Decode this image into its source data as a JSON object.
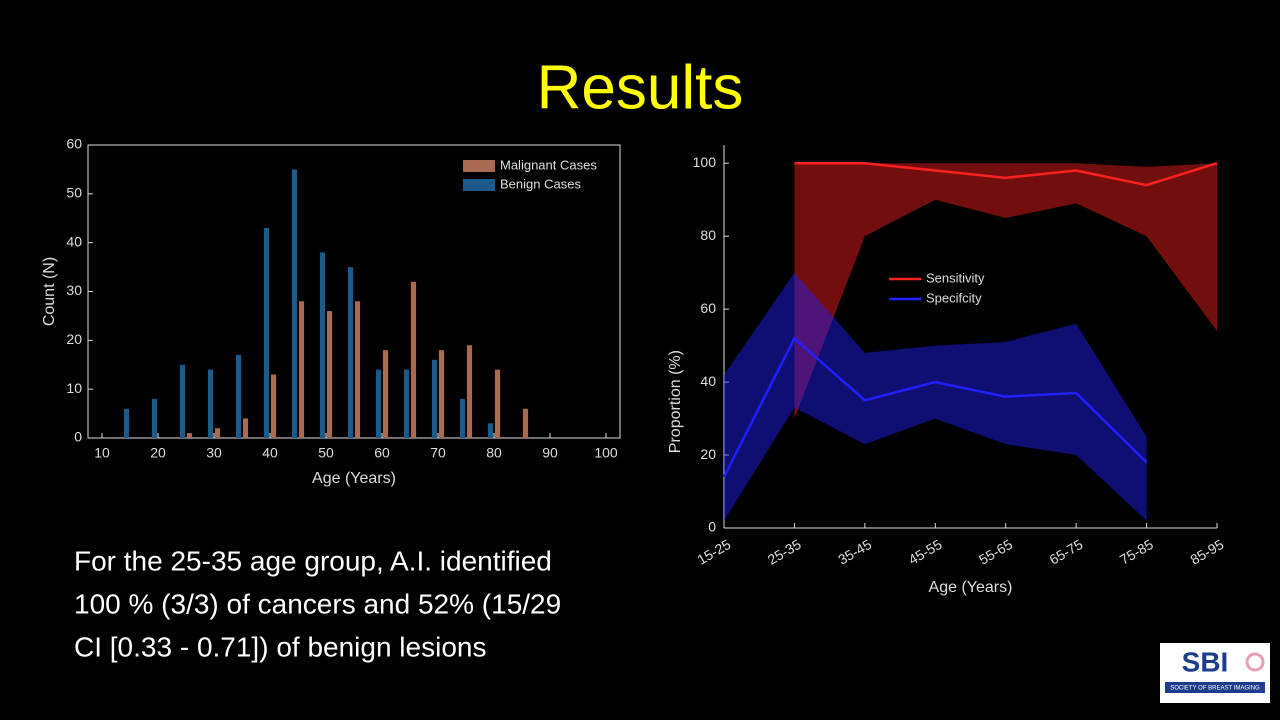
{
  "title": "Results",
  "text": [
    "For the 25-35 age group, A.I. identified",
    "100 % (3/3) of cancers and 52% (15/29",
    "CI [0.33 - 0.71]) of benign lesions"
  ],
  "logo": {
    "name": "SBI",
    "subtitle": "SOCIETY OF BREAST IMAGING"
  },
  "chart_data": [
    {
      "type": "bar",
      "xlabel": "Age (Years)",
      "ylabel": "Count (N)",
      "x": [
        15,
        20,
        25,
        30,
        35,
        40,
        45,
        50,
        55,
        60,
        65,
        70,
        75,
        80,
        85
      ],
      "series": [
        {
          "name": "Malignant Cases",
          "color": "#a86a52",
          "values": [
            0,
            0,
            1,
            2,
            4,
            13,
            28,
            26,
            28,
            18,
            32,
            18,
            19,
            14,
            6
          ]
        },
        {
          "name": "Benign Cases",
          "color": "#1d5a8c",
          "values": [
            6,
            8,
            15,
            14,
            17,
            43,
            55,
            38,
            35,
            14,
            14,
            16,
            8,
            3,
            0
          ]
        }
      ],
      "xlim": [
        7.5,
        102.5
      ],
      "xticks": [
        10,
        20,
        30,
        40,
        50,
        60,
        70,
        80,
        90,
        100
      ],
      "ylim": [
        0,
        60
      ],
      "yticks": [
        0,
        10,
        20,
        30,
        40,
        50,
        60
      ],
      "legend": "upper right"
    },
    {
      "type": "band",
      "xlabel": "Age (Years)",
      "ylabel": "Proportion (%)",
      "categories": [
        "15-25",
        "25-35",
        "35-45",
        "45-55",
        "55-65",
        "65-75",
        "75-85",
        "85-95"
      ],
      "series": [
        {
          "name": "Sensitivity",
          "color": "#ff2020",
          "values": [
            null,
            100,
            100,
            98,
            96,
            98,
            94,
            100
          ],
          "lower": [
            null,
            30,
            80,
            90,
            85,
            89,
            80,
            54
          ],
          "upper": [
            null,
            100,
            100,
            100,
            100,
            100,
            99,
            100
          ]
        },
        {
          "name": "Specifcity",
          "color": "#2020ff",
          "values": [
            14,
            52,
            35,
            40,
            36,
            37,
            18,
            null
          ],
          "lower": [
            2,
            33,
            23,
            30,
            23,
            20,
            2,
            null
          ],
          "upper": [
            42,
            70,
            48,
            50,
            51,
            56,
            25,
            null
          ]
        }
      ],
      "ylim": [
        0,
        105
      ],
      "yticks": [
        0,
        20,
        40,
        60,
        80,
        100
      ],
      "legend": "center"
    }
  ]
}
